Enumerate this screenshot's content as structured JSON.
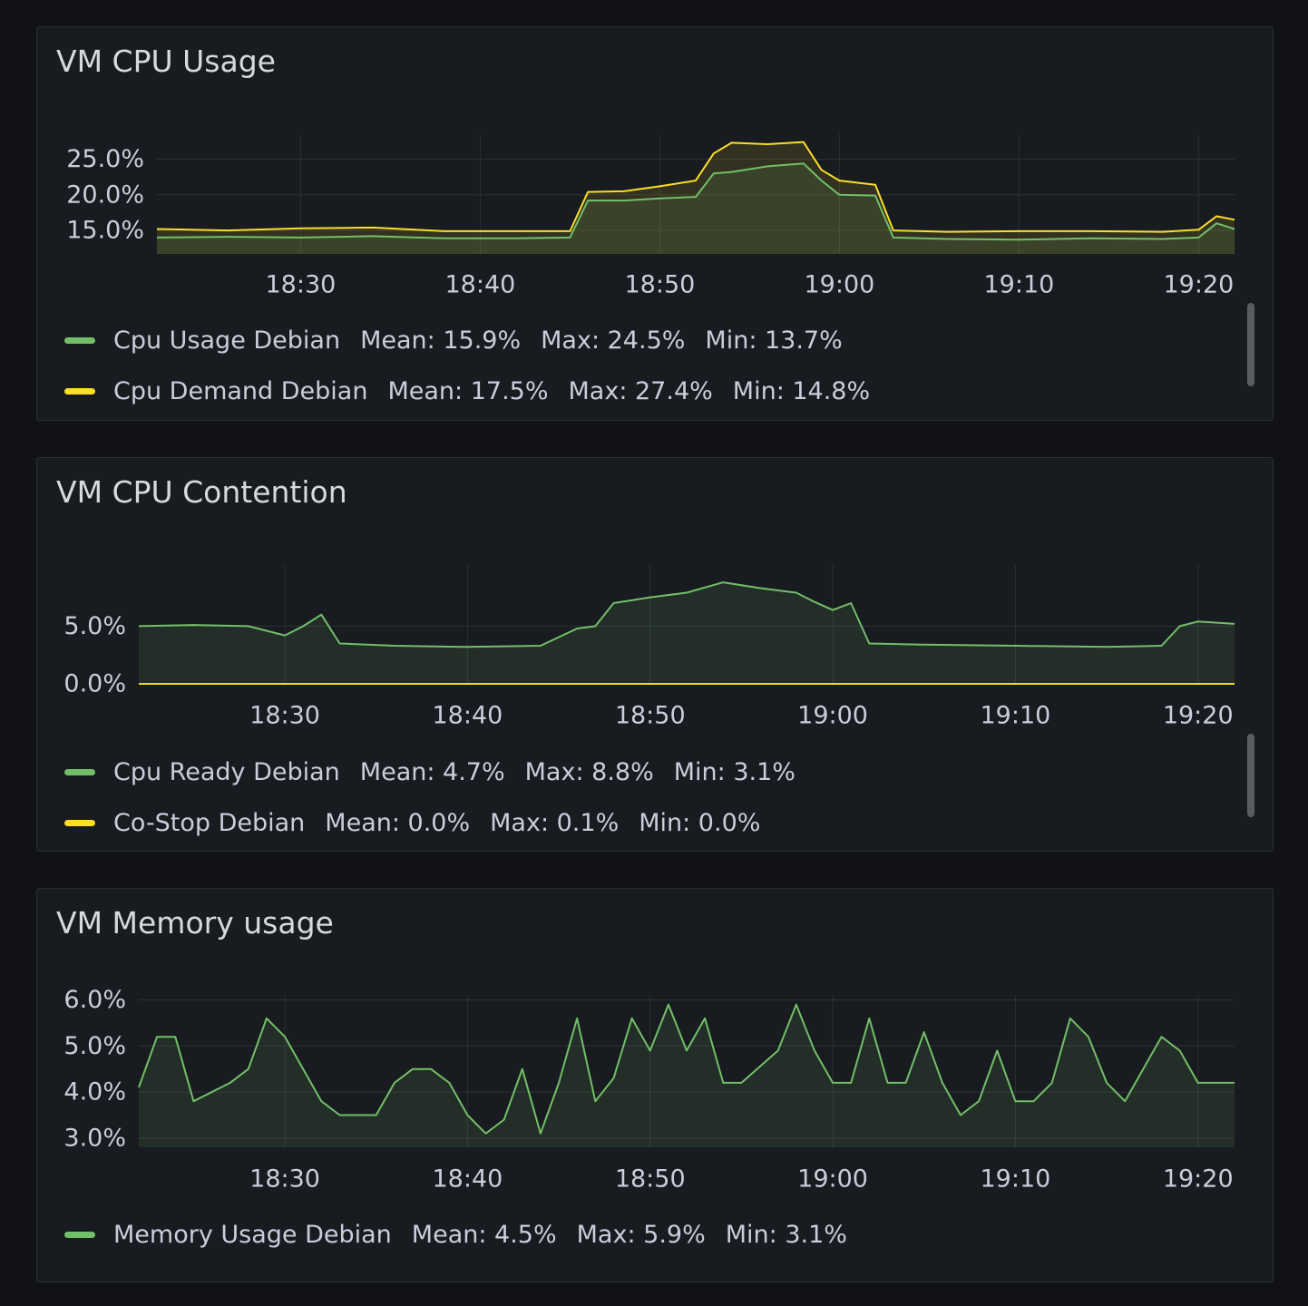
{
  "colors": {
    "green": "#73bf69",
    "yellow": "#fade2a",
    "grid": "#2c2f35"
  },
  "panels": [
    {
      "title": "VM CPU Usage",
      "legend": [
        {
          "name": "Cpu Usage Debian",
          "color": "#73bf69",
          "mean": "Mean: 15.9%",
          "max": "Max: 24.5%",
          "min": "Min: 13.7%"
        },
        {
          "name": "Cpu Demand Debian",
          "color": "#fade2a",
          "mean": "Mean: 17.5%",
          "max": "Max: 27.4%",
          "min": "Min: 14.8%"
        }
      ]
    },
    {
      "title": "VM CPU Contention",
      "legend": [
        {
          "name": "Cpu Ready Debian",
          "color": "#73bf69",
          "mean": "Mean: 4.7%",
          "max": "Max: 8.8%",
          "min": "Min: 3.1%"
        },
        {
          "name": "Co-Stop Debian",
          "color": "#fade2a",
          "mean": "Mean: 0.0%",
          "max": "Max: 0.1%",
          "min": "Min: 0.0%"
        }
      ]
    },
    {
      "title": "VM Memory usage",
      "legend": [
        {
          "name": "Memory Usage Debian",
          "color": "#73bf69",
          "mean": "Mean: 4.5%",
          "max": "Max: 5.9%",
          "min": "Min: 3.1%"
        }
      ]
    }
  ],
  "chart_data": [
    {
      "type": "area",
      "title": "VM CPU Usage",
      "xlabel": "",
      "ylabel": "",
      "x_range": [
        "18:22",
        "19:22"
      ],
      "x_ticks": [
        "18:30",
        "18:40",
        "18:50",
        "19:00",
        "19:10",
        "19:20"
      ],
      "y_ticks": [
        "15.0%",
        "20.0%",
        "25.0%"
      ],
      "ylim": [
        11.7,
        28.5
      ],
      "grid": true,
      "legend_position": "bottom",
      "x": [
        "18:22",
        "18:26",
        "18:30",
        "18:34",
        "18:38",
        "18:42",
        "18:45",
        "18:46",
        "18:48",
        "18:50",
        "18:52",
        "18:53",
        "18:54",
        "18:56",
        "18:58",
        "18:59",
        "19:00",
        "19:02",
        "19:03",
        "19:06",
        "19:10",
        "19:14",
        "19:18",
        "19:20",
        "19:21",
        "19:22"
      ],
      "series": [
        {
          "name": "Cpu Usage Debian",
          "color": "#73bf69",
          "values": [
            14.0,
            14.1,
            14.0,
            14.2,
            13.9,
            13.9,
            14.0,
            19.2,
            19.2,
            19.5,
            19.7,
            23.0,
            23.2,
            24.0,
            24.4,
            22.0,
            20.0,
            19.9,
            14.0,
            13.8,
            13.7,
            13.9,
            13.8,
            14.0,
            16.0,
            15.2
          ]
        },
        {
          "name": "Cpu Demand Debian",
          "color": "#fade2a",
          "values": [
            15.2,
            15.0,
            15.3,
            15.4,
            14.9,
            14.9,
            14.9,
            20.4,
            20.5,
            21.2,
            22.0,
            25.8,
            27.3,
            27.1,
            27.4,
            23.5,
            22.0,
            21.4,
            15.0,
            14.8,
            14.9,
            14.9,
            14.8,
            15.1,
            17.0,
            16.5
          ]
        }
      ]
    },
    {
      "type": "area",
      "title": "VM CPU Contention",
      "xlabel": "",
      "ylabel": "",
      "x_range": [
        "18:22",
        "19:22"
      ],
      "x_ticks": [
        "18:30",
        "18:40",
        "18:50",
        "19:00",
        "19:10",
        "19:20"
      ],
      "y_ticks": [
        "0.0%",
        "5.0%"
      ],
      "ylim": [
        0,
        10.3
      ],
      "grid": true,
      "legend_position": "bottom",
      "x": [
        "18:22",
        "18:25",
        "18:28",
        "18:30",
        "18:31",
        "18:32",
        "18:33",
        "18:36",
        "18:40",
        "18:44",
        "18:46",
        "18:47",
        "18:48",
        "18:50",
        "18:52",
        "18:54",
        "18:56",
        "18:58",
        "18:59",
        "19:00",
        "19:01",
        "19:02",
        "19:05",
        "19:10",
        "19:15",
        "19:18",
        "19:19",
        "19:20",
        "19:22"
      ],
      "series": [
        {
          "name": "Cpu Ready Debian",
          "color": "#73bf69",
          "values": [
            5.0,
            5.1,
            5.0,
            4.2,
            5.0,
            6.0,
            3.5,
            3.3,
            3.2,
            3.3,
            4.8,
            5.0,
            7.0,
            7.5,
            7.9,
            8.8,
            8.3,
            7.9,
            7.1,
            6.4,
            7.0,
            3.5,
            3.4,
            3.3,
            3.2,
            3.3,
            5.0,
            5.4,
            5.2
          ]
        },
        {
          "name": "Co-Stop Debian",
          "color": "#fade2a",
          "values": [
            0.0,
            0.0,
            0.0,
            0.0,
            0.0,
            0.0,
            0.0,
            0.0,
            0.0,
            0.0,
            0.0,
            0.0,
            0.0,
            0.0,
            0.0,
            0.0,
            0.0,
            0.0,
            0.0,
            0.0,
            0.0,
            0.0,
            0.0,
            0.0,
            0.0,
            0.0,
            0.0,
            0.0,
            0.0
          ]
        }
      ]
    },
    {
      "type": "area",
      "title": "VM Memory usage",
      "xlabel": "",
      "ylabel": "",
      "x_range": [
        "18:22",
        "19:22"
      ],
      "x_ticks": [
        "18:30",
        "18:40",
        "18:50",
        "19:00",
        "19:10",
        "19:20"
      ],
      "y_ticks": [
        "3.0%",
        "4.0%",
        "5.0%",
        "6.0%"
      ],
      "ylim": [
        2.8,
        6.05
      ],
      "grid": true,
      "legend_position": "bottom",
      "x": [
        "18:22",
        "18:23",
        "18:24",
        "18:25",
        "18:27",
        "18:28",
        "18:29",
        "18:30",
        "18:32",
        "18:33",
        "18:35",
        "18:36",
        "18:37",
        "18:38",
        "18:39",
        "18:40",
        "18:41",
        "18:42",
        "18:43",
        "18:44",
        "18:45",
        "18:46",
        "18:47",
        "18:48",
        "18:49",
        "18:50",
        "18:51",
        "18:52",
        "18:53",
        "18:54",
        "18:55",
        "18:57",
        "18:58",
        "18:59",
        "19:00",
        "19:01",
        "19:02",
        "19:03",
        "19:04",
        "19:05",
        "19:06",
        "19:07",
        "19:08",
        "19:09",
        "19:10",
        "19:11",
        "19:12",
        "19:13",
        "19:14",
        "19:15",
        "19:16",
        "19:17",
        "19:18",
        "19:19",
        "19:20",
        "19:21",
        "19:22"
      ],
      "series": [
        {
          "name": "Memory Usage Debian",
          "color": "#73bf69",
          "values": [
            4.1,
            5.2,
            5.2,
            3.8,
            4.2,
            4.5,
            5.6,
            5.2,
            3.8,
            3.5,
            3.5,
            4.2,
            4.5,
            4.5,
            4.2,
            3.5,
            3.1,
            3.4,
            4.5,
            3.1,
            4.2,
            5.6,
            3.8,
            4.3,
            5.6,
            4.9,
            5.9,
            4.9,
            5.6,
            4.2,
            4.2,
            4.9,
            5.9,
            4.9,
            4.2,
            4.2,
            5.6,
            4.2,
            4.2,
            5.3,
            4.2,
            3.5,
            3.8,
            4.9,
            3.8,
            3.8,
            4.2,
            5.6,
            5.2,
            4.2,
            3.8,
            4.5,
            5.2,
            4.9,
            4.2,
            4.2,
            4.2
          ]
        }
      ]
    }
  ]
}
